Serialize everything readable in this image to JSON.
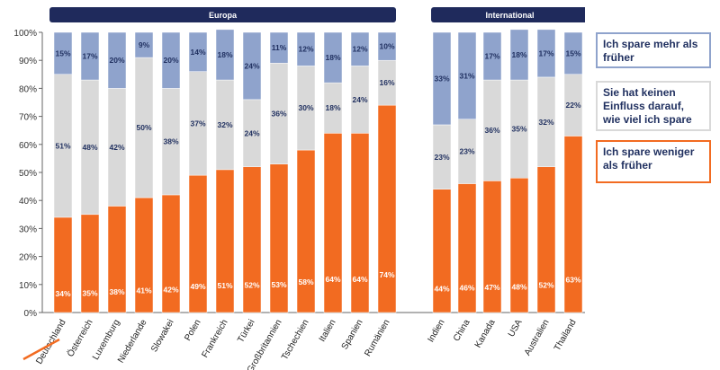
{
  "chart_data": {
    "type": "bar",
    "stacked": true,
    "ylim": [
      0,
      100
    ],
    "yticks": [
      "0%",
      "10%",
      "20%",
      "30%",
      "40%",
      "50%",
      "60%",
      "70%",
      "80%",
      "90%",
      "100%"
    ],
    "grid": false,
    "legend_placement": "right",
    "groups": [
      {
        "label": "Europa",
        "categories": [
          "Deutschland",
          "Österreich",
          "Luxemburg",
          "Niederlande",
          "Slowakei",
          "Polen",
          "Frankreich",
          "Türkei",
          "Großbritannien",
          "Tschechien",
          "Italien",
          "Spanien",
          "Rumänien"
        ]
      },
      {
        "label": "International",
        "categories": [
          "Indien",
          "China",
          "Kanada",
          "USA",
          "Australien",
          "Thailand"
        ]
      }
    ],
    "categories": [
      "Deutschland",
      "Österreich",
      "Luxemburg",
      "Niederlande",
      "Slowakei",
      "Polen",
      "Frankreich",
      "Türkei",
      "Großbritannien",
      "Tschechien",
      "Italien",
      "Spanien",
      "Rumänien",
      "Indien",
      "China",
      "Kanada",
      "USA",
      "Australien",
      "Thailand"
    ],
    "highlighted_category": "Deutschland",
    "series": [
      {
        "name": "Ich spare weniger als früher",
        "color": "#f26b21",
        "values": [
          34,
          35,
          38,
          41,
          42,
          49,
          51,
          52,
          53,
          58,
          64,
          64,
          74,
          44,
          46,
          47,
          48,
          52,
          63
        ],
        "labels": [
          "34%",
          "35%",
          "38%",
          "41%",
          "42%",
          "49%",
          "51%",
          "52%",
          "53%",
          "58%",
          "64%",
          "64%",
          "74%",
          "44%",
          "46%",
          "47%",
          "48%",
          "52%",
          "63%"
        ]
      },
      {
        "name": "Sie hat keinen Einfluss darauf, wie viel ich spare",
        "color": "#d9d9d9",
        "values": [
          51,
          48,
          42,
          50,
          38,
          37,
          32,
          24,
          36,
          30,
          18,
          24,
          16,
          23,
          23,
          36,
          35,
          32,
          22
        ],
        "labels": [
          "51%",
          "48%",
          "42%",
          "50%",
          "38%",
          "37%",
          "32%",
          "24%",
          "36%",
          "30%",
          "18%",
          "24%",
          "16%",
          "23%",
          "23%",
          "36%",
          "35%",
          "32%",
          "22%"
        ]
      },
      {
        "name": "Ich spare mehr als früher",
        "color": "#8fa3cc",
        "values": [
          15,
          17,
          20,
          9,
          20,
          14,
          18,
          24,
          11,
          12,
          18,
          12,
          10,
          33,
          31,
          17,
          18,
          17,
          15
        ],
        "labels": [
          "15%",
          "17%",
          "20%",
          "9%",
          "20%",
          "14%",
          "18%",
          "24%",
          "11%",
          "12%",
          "18%",
          "12%",
          "10%",
          "33%",
          "31%",
          "17%",
          "18%",
          "17%",
          "15%"
        ]
      }
    ]
  },
  "legend": {
    "more": "Ich spare mehr als früher",
    "neutral": "Sie hat keinen Einfluss darauf, wie viel ich spare",
    "less": "Ich spare weniger als früher"
  },
  "colors": {
    "header_bg": "#1f2a5c",
    "axis": "#666666",
    "label_dark": "#1f2f5f",
    "label_light": "#ffffff",
    "highlight_underline": "#f26b21"
  }
}
